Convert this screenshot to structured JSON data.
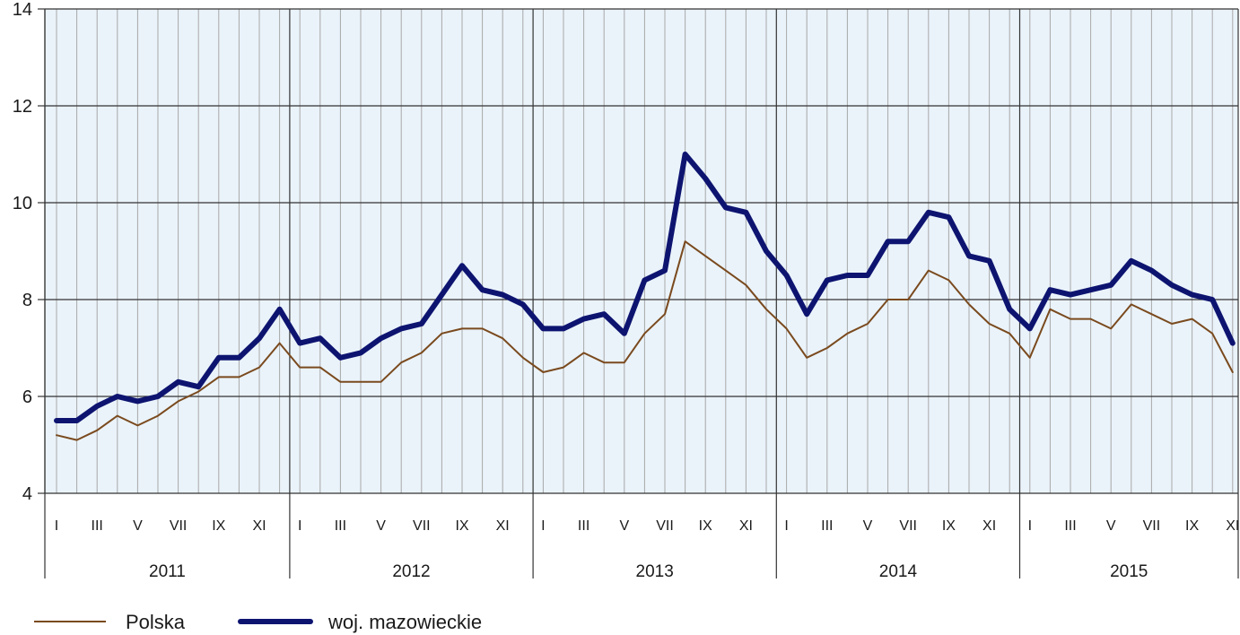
{
  "chart_data": {
    "type": "line",
    "title": "",
    "xlabel": "",
    "ylabel": "",
    "ylim": [
      4,
      14
    ],
    "yticks": [
      "4",
      "6",
      "8",
      "10",
      "12",
      "14"
    ],
    "years": [
      "2011",
      "2012",
      "2013",
      "2014",
      "2015"
    ],
    "month_labels": [
      "I",
      "III",
      "V",
      "VII",
      "IX",
      "XI"
    ],
    "grid": true,
    "legend_position": "bottom-left",
    "series": [
      {
        "name": "Polska",
        "color": "#7a4a1e",
        "values": [
          5.2,
          5.1,
          5.3,
          5.6,
          5.4,
          5.6,
          5.9,
          6.1,
          6.4,
          6.4,
          6.6,
          7.1,
          6.6,
          6.6,
          6.3,
          6.3,
          6.3,
          6.7,
          6.9,
          7.3,
          7.4,
          7.4,
          7.2,
          6.8,
          6.5,
          6.6,
          6.9,
          6.7,
          6.7,
          7.3,
          7.7,
          9.2,
          8.9,
          8.6,
          8.3,
          7.8,
          7.4,
          6.8,
          7.0,
          7.3,
          7.5,
          8.0,
          8.0,
          8.6,
          8.4,
          7.9,
          7.5,
          7.3,
          6.8,
          7.8,
          7.6,
          7.6,
          7.4,
          7.9,
          7.7,
          7.5,
          7.6,
          7.3,
          6.5
        ]
      },
      {
        "name": "woj. mazowieckie",
        "color": "#0d1470",
        "values": [
          5.5,
          5.5,
          5.8,
          6.0,
          5.9,
          6.0,
          6.3,
          6.2,
          6.8,
          6.8,
          7.2,
          7.8,
          7.1,
          7.2,
          6.8,
          6.9,
          7.2,
          7.4,
          7.5,
          8.1,
          8.7,
          8.2,
          8.1,
          7.9,
          7.4,
          7.4,
          7.6,
          7.7,
          7.3,
          8.4,
          8.6,
          11.0,
          10.5,
          9.9,
          9.8,
          9.0,
          8.5,
          7.7,
          8.4,
          8.5,
          8.5,
          9.2,
          9.2,
          9.8,
          9.7,
          8.9,
          8.8,
          7.8,
          7.4,
          8.2,
          8.1,
          8.2,
          8.3,
          8.8,
          8.6,
          8.3,
          8.1,
          8.0,
          7.1
        ]
      }
    ]
  }
}
